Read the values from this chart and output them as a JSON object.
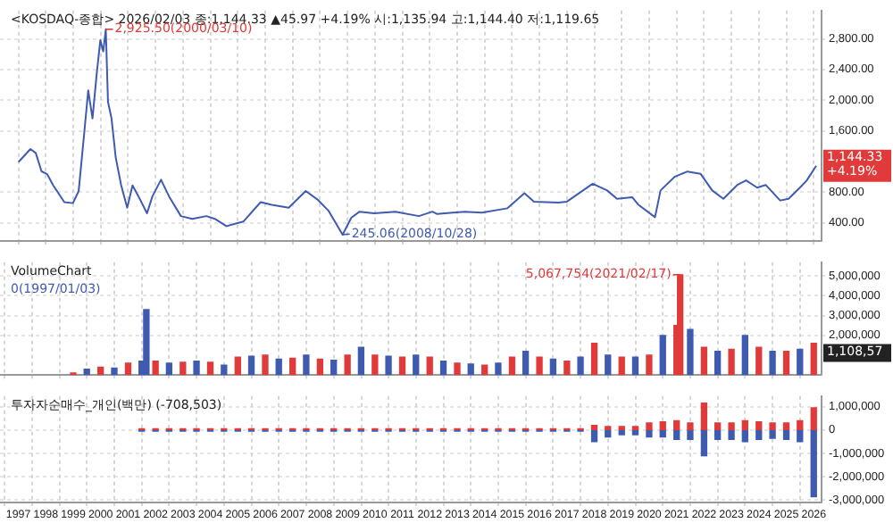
{
  "chart_data": [
    {
      "type": "line",
      "title": "<KOSDAQ-종합> 2026/02/03 종:1,144.33 ▲45.97 +4.19% 시:1,135.94 고:1,144.40 저:1,119.65",
      "x": [
        "1997-01-03",
        "1997-06-10",
        "1997-08-20",
        "1997-11-05",
        "1998-01-20",
        "1998-04-10",
        "1998-09-05",
        "1998-12-28",
        "1999-03-15",
        "1999-05-25",
        "1999-07-20",
        "1999-09-15",
        "1999-11-10",
        "1999-12-28",
        "2000-02-05",
        "2000-03-10",
        "2000-04-08",
        "2000-05-25",
        "2000-07-20",
        "2000-10-01",
        "2000-12-20",
        "2001-03-01",
        "2001-05-20",
        "2001-09-10",
        "2001-11-20",
        "2002-03-15",
        "2002-07-01",
        "2002-12-05",
        "2003-05-05",
        "2003-11-10",
        "2004-03-01",
        "2004-08-01",
        "2005-03-15",
        "2005-11-01",
        "2006-03-30",
        "2006-11-10",
        "2007-06-25",
        "2007-11-25",
        "2008-04-20",
        "2008-10-28",
        "2009-02-20",
        "2009-06-10",
        "2009-12-20",
        "2010-10-01",
        "2011-08-10",
        "2012-02-05",
        "2012-04-05",
        "2013-04-10",
        "2013-11-25",
        "2014-11-01",
        "2015-06-15",
        "2015-10-20",
        "2016-09-10",
        "2017-01-01",
        "2017-12-10",
        "2018-06-20",
        "2018-10-30",
        "2019-05-20",
        "2019-08-05",
        "2020-03-19",
        "2020-06-01",
        "2020-12-10",
        "2021-05-25",
        "2021-11-15",
        "2022-04-20",
        "2022-09-15",
        "2023-03-20",
        "2023-07-15",
        "2023-12-10",
        "2024-04-01",
        "2024-10-10",
        "2025-01-30",
        "2025-06-30",
        "2025-09-30",
        "2026-02-03"
      ],
      "series": [
        {
          "color": "#3f5bb0",
          "values": [
            1193,
            1362,
            1311,
            1071,
            1034,
            888,
            669,
            656,
            815,
            1543,
            2127,
            1762,
            2346,
            2783,
            2636,
            2925.5,
            1980,
            1762,
            1253,
            888,
            597,
            888,
            743,
            524,
            743,
            962,
            743,
            487,
            451,
            487,
            451,
            356,
            415,
            669,
            633,
            597,
            815,
            706,
            560,
            245.06,
            465,
            545,
            524,
            545,
            487,
            545,
            516,
            545,
            531,
            589,
            785,
            676,
            662,
            676,
            909,
            822,
            713,
            734,
            640,
            473,
            822,
            1003,
            1069,
            1040,
            822,
            713,
            894,
            953,
            858,
            894,
            691,
            713,
            858,
            953,
            1144.33
          ]
        }
      ],
      "xlim": [
        "1996-05-01",
        "2026-04-15"
      ],
      "xticks": [
        "1997",
        "1998",
        "1999",
        "2000",
        "2001",
        "2002",
        "2003",
        "2004",
        "2005",
        "2006",
        "2007",
        "2008",
        "2009",
        "2010",
        "2011",
        "2012",
        "2013",
        "2014",
        "2015",
        "2016",
        "2017",
        "2018",
        "2019",
        "2020",
        "2021",
        "2022",
        "2023",
        "2024",
        "2025",
        "2026"
      ],
      "ylim": [
        160,
        3170
      ],
      "yticks": [
        {
          "value": 400,
          "label": "400.00"
        },
        {
          "value": 800,
          "label": "800.00"
        },
        {
          "value": 1600,
          "label": "1,600.00"
        },
        {
          "value": 2000,
          "label": "2,000.00"
        },
        {
          "value": 2400,
          "label": "2,400.00"
        },
        {
          "value": 2800,
          "label": "2,800.00"
        }
      ],
      "annotations": [
        {
          "text": "2,925.50(2000/03/10)",
          "x": "2000-03-10",
          "y": 2925.5
        },
        {
          "text": "245.06(2008/10/28)",
          "x": "2008-10-28",
          "y": 245.06
        },
        {
          "text": "1,144.33 +4.19%",
          "x": "2026-02-03",
          "y": 1144.33
        }
      ],
      "grid": true,
      "legend": false,
      "marker": "none",
      "tick_labels": "y"
    },
    {
      "type": "bar",
      "title": "VolumeChart",
      "x": [
        "1999-01",
        "1999-07",
        "2000-01",
        "2000-07",
        "2001-01",
        "2001-07",
        "2001-09",
        "2002-01",
        "2002-07",
        "2003-01",
        "2003-07",
        "2004-01",
        "2004-07",
        "2005-01",
        "2005-07",
        "2006-01",
        "2006-07",
        "2007-01",
        "2007-07",
        "2008-01",
        "2008-07",
        "2009-01",
        "2009-07",
        "2010-01",
        "2010-07",
        "2011-01",
        "2011-07",
        "2012-01",
        "2012-07",
        "2013-01",
        "2013-07",
        "2014-01",
        "2014-07",
        "2015-01",
        "2015-07",
        "2016-01",
        "2016-07",
        "2017-01",
        "2017-07",
        "2018-01",
        "2018-07",
        "2019-01",
        "2019-07",
        "2020-01",
        "2020-07",
        "2021-01",
        "2021-02-17",
        "2021-07",
        "2022-01",
        "2022-07",
        "2023-01",
        "2023-07",
        "2024-01",
        "2024-07",
        "2025-01",
        "2025-07",
        "2026-01"
      ],
      "values": [
        100000,
        300000,
        400000,
        350000,
        600000,
        700000,
        3300000,
        700000,
        600000,
        650000,
        700000,
        650000,
        500000,
        900000,
        950000,
        1000000,
        800000,
        850000,
        1000000,
        800000,
        750000,
        1000000,
        1400000,
        1000000,
        950000,
        900000,
        1000000,
        900000,
        700000,
        600000,
        550000,
        500000,
        600000,
        900000,
        1200000,
        900000,
        800000,
        700000,
        900000,
        1600000,
        1000000,
        900000,
        900000,
        1000000,
        2000000,
        2500000,
        5067754,
        2300000,
        1400000,
        1200000,
        1300000,
        2000000,
        1400000,
        1200000,
        1200000,
        1300000,
        1600000
      ],
      "colors": [
        "#e03a3a",
        "#3f5bb0",
        "#e03a3a",
        "#3f5bb0",
        "#e03a3a",
        "#3f5bb0",
        "#3f5bb0",
        "#e03a3a",
        "#3f5bb0",
        "#e03a3a",
        "#3f5bb0",
        "#e03a3a",
        "#3f5bb0",
        "#e03a3a",
        "#3f5bb0",
        "#e03a3a",
        "#3f5bb0",
        "#e03a3a",
        "#3f5bb0",
        "#e03a3a",
        "#3f5bb0",
        "#e03a3a",
        "#3f5bb0",
        "#e03a3a",
        "#3f5bb0",
        "#e03a3a",
        "#3f5bb0",
        "#e03a3a",
        "#3f5bb0",
        "#e03a3a",
        "#3f5bb0",
        "#e03a3a",
        "#3f5bb0",
        "#e03a3a",
        "#3f5bb0",
        "#e03a3a",
        "#3f5bb0",
        "#e03a3a",
        "#3f5bb0",
        "#e03a3a",
        "#3f5bb0",
        "#e03a3a",
        "#3f5bb0",
        "#e03a3a",
        "#3f5bb0",
        "#e03a3a",
        "#e03a3a",
        "#3f5bb0",
        "#e03a3a",
        "#3f5bb0",
        "#e03a3a",
        "#3f5bb0",
        "#e03a3a",
        "#3f5bb0",
        "#e03a3a",
        "#3f5bb0",
        "#e03a3a"
      ],
      "xlim": [
        "1996-05-01",
        "2026-04-15"
      ],
      "xticks": [
        "1997",
        "1998",
        "1999",
        "2000",
        "2001",
        "2002",
        "2003",
        "2004",
        "2005",
        "2006",
        "2007",
        "2008",
        "2009",
        "2010",
        "2011",
        "2012",
        "2013",
        "2014",
        "2015",
        "2016",
        "2017",
        "2018",
        "2019",
        "2020",
        "2021",
        "2022",
        "2023",
        "2024",
        "2025",
        "2026"
      ],
      "ylim": [
        0,
        5700000
      ],
      "yticks": [
        {
          "value": 2000000,
          "label": "2,000,000"
        },
        {
          "value": 3000000,
          "label": "3,000,000"
        },
        {
          "value": 4000000,
          "label": "4,000,000"
        },
        {
          "value": 5000000,
          "label": "5,000,000"
        }
      ],
      "annotations": [
        "0(1997/01/03)",
        {
          "text": "5,067,754(2021/02/17)",
          "x": "2021-02-17",
          "y": 5067754
        },
        {
          "text": "1,108,57",
          "x": "2026-02-03",
          "y": 1108570
        }
      ],
      "grid": true,
      "legend": false,
      "tick_labels": "y"
    },
    {
      "type": "bar",
      "title": "투자자순매수_개인(백만) (-708,503)",
      "stacked": true,
      "x": [
        "2001-07",
        "2002-01",
        "2002-07",
        "2003-01",
        "2003-07",
        "2004-01",
        "2004-07",
        "2005-01",
        "2005-07",
        "2006-01",
        "2006-07",
        "2007-01",
        "2007-07",
        "2008-01",
        "2008-07",
        "2009-01",
        "2009-07",
        "2010-01",
        "2010-07",
        "2011-01",
        "2011-07",
        "2012-01",
        "2012-07",
        "2013-01",
        "2013-07",
        "2014-01",
        "2014-07",
        "2015-01",
        "2015-07",
        "2016-01",
        "2016-07",
        "2017-01",
        "2017-07",
        "2018-01",
        "2018-07",
        "2019-01",
        "2019-07",
        "2020-01",
        "2020-07",
        "2021-01",
        "2021-07",
        "2022-01",
        "2022-07",
        "2023-01",
        "2023-07",
        "2024-01",
        "2024-07",
        "2025-01",
        "2025-07",
        "2026-01"
      ],
      "series": [
        {
          "color": "#e03a3a",
          "values": [
            50000,
            50000,
            50000,
            50000,
            50000,
            50000,
            50000,
            50000,
            50000,
            50000,
            50000,
            50000,
            50000,
            50000,
            50000,
            50000,
            50000,
            50000,
            50000,
            50000,
            50000,
            50000,
            50000,
            50000,
            50000,
            50000,
            50000,
            50000,
            50000,
            50000,
            50000,
            50000,
            50000,
            200000,
            150000,
            150000,
            150000,
            300000,
            350000,
            400000,
            300000,
            1150000,
            300000,
            300000,
            400000,
            350000,
            300000,
            300000,
            400000,
            950000
          ]
        },
        {
          "color": "#3f5bb0",
          "values": [
            -50000,
            -50000,
            -50000,
            -50000,
            -50000,
            -50000,
            -50000,
            -50000,
            -50000,
            -50000,
            -50000,
            -50000,
            -50000,
            -50000,
            -50000,
            -50000,
            -50000,
            -50000,
            -50000,
            -50000,
            -50000,
            -50000,
            -50000,
            -50000,
            -50000,
            -50000,
            -50000,
            -50000,
            -50000,
            -50000,
            -50000,
            -50000,
            -50000,
            -500000,
            -300000,
            -200000,
            -200000,
            -300000,
            -300000,
            -400000,
            -400000,
            -1100000,
            -400000,
            -400000,
            -500000,
            -400000,
            -350000,
            -400000,
            -500000,
            -2850000
          ]
        }
      ],
      "xlim": [
        "1996-05-01",
        "2026-04-15"
      ],
      "xticks": [
        "1997",
        "1998",
        "1999",
        "2000",
        "2001",
        "2002",
        "2003",
        "2004",
        "2005",
        "2006",
        "2007",
        "2008",
        "2009",
        "2010",
        "2011",
        "2012",
        "2013",
        "2014",
        "2015",
        "2016",
        "2017",
        "2018",
        "2019",
        "2020",
        "2021",
        "2022",
        "2023",
        "2024",
        "2025",
        "2026"
      ],
      "ylim": [
        -3100000,
        1450000
      ],
      "yticks": [
        {
          "value": -3000000,
          "label": "-3,000,000"
        },
        {
          "value": -2000000,
          "label": "-2,000,000"
        },
        {
          "value": -1000000,
          "label": "-1,000,000"
        },
        {
          "value": 0,
          "label": "0"
        },
        {
          "value": 1000000,
          "label": "1,000,000"
        }
      ],
      "grid": true,
      "legend": false
    }
  ]
}
